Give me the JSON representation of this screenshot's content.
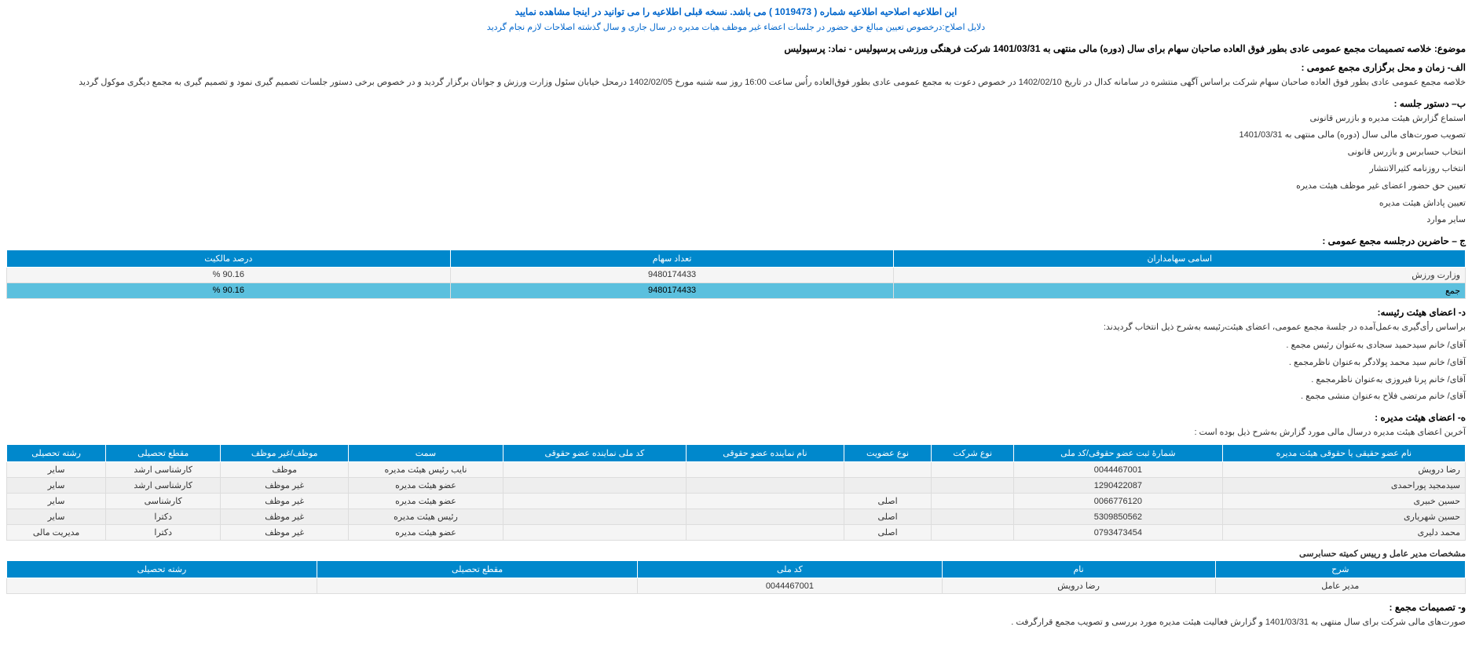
{
  "header": {
    "notice": "این اطلاعیه اصلاحیه اطلاعیه شماره ( 1019473 ) می باشد. نسخه قبلی اطلاعیه را می توانید در اینجا مشاهده نمایید",
    "reason": "دلایل اصلاح:درخصوص تعیین مبالغ حق حضور در جلسات اعضاء غیر موظف هیات مدیره در سال جاری و سال گذشته اصلاحات لازم نجام گردید"
  },
  "subject": {
    "label": "موضوع:",
    "text": "خلاصه تصمیمات مجمع عمومی عادی بطور فوق العاده صاحبان سهام برای سال (دوره) مالی منتهی به 1401/03/31 شرکت فرهنگی ورزشی پرسپولیس - نماد: پرسپولیس"
  },
  "sectionA": {
    "title": "الف- زمان و محل برگزاری مجمع عمومی :",
    "text": "خلاصه مجمع عمومی عادی بطور فوق العاده صاحبان سهام شرکت براساس آگهی منتشره در سامانه کدال در تاریخ 1402/02/10 در خصوص دعوت به مجمع عمومی عادی بطور فوق‌العاده راُس ساعت 16:00 روز سه شنبه مورخ 1402/02/05 درمحل  خیابان سئول وزارت ورزش و جوانان   برگزار گردید و در خصوص برخی دستور جلسات تصمیم گیری نمود و تصمیم گیری به مجمع دیگری موکول گردید"
  },
  "sectionB": {
    "title": "ب– دستور جلسه :",
    "items": [
      "استماع گزارش هیئت‌ مدیره و بازرس قانونی",
      "تصویب صورت‌های مالی سال (دوره) مالی منتهی به 1401/03/31",
      "انتخاب حسابرس و بازرس قانونی",
      "انتخاب روزنامه کثیر‌الانتشار",
      "تعیین حق حضور اعضای غیر موظف هیئت مدیره",
      "تعیین پاداش هیئت مدیره",
      "سایر موارد"
    ]
  },
  "sectionC": {
    "title": "ج – حاضرین درجلسه مجمع عمومی :",
    "columns": [
      "اسامی سهامداران",
      "تعداد سهام",
      "درصد مالکیت"
    ],
    "rows": [
      {
        "name": "وزارت ورزش",
        "shares": "9480174433",
        "pct": "90.16 %",
        "cls": "row-light"
      },
      {
        "name": "جمع",
        "shares": "9480174433",
        "pct": "90.16 %",
        "cls": "row-blue"
      }
    ]
  },
  "sectionD": {
    "title": "د- اعضای هیئت رئیسه:",
    "intro": "براساس رأی‌گیری به‌عمل‌آمده در جلسة مجمع عمومی، اعضای هیئت‌رئیسه به‌شرح ذیل انتخاب گردیدند:",
    "members": [
      "آقای/ خانم  سیدحمید سجادی  به‌عنوان رئیس مجمع .",
      "آقای/ خانم  سید محمد پولادگر  به‌عنوان ناظرمجمع .",
      "آقای/ خانم  پرنا فیروزی  به‌عنوان ناظرمجمع .",
      "آقای/ خانم  مرتضی فلاح  به‌عنوان منشی مجمع ."
    ]
  },
  "sectionE": {
    "title": "ه- اعضای هیئت مدیره :",
    "intro": "آخرین اعضای هیئت مدیره درسال مالی مورد گزارش به‌شرح ذیل بوده است :",
    "columns": [
      "نام عضو حقیقی یا حقوقی هیئت مدیره",
      "شمارۀ ثبت عضو حقوقی/کد ملی",
      "نوع شرکت",
      "نوع عضویت",
      "نام نماینده عضو حقوقی",
      "کد ملی نماینده عضو حقوقی",
      "سمت",
      "موظف/غیر موظف",
      "مقطع تحصیلی",
      "رشته تحصیلی"
    ],
    "rows": [
      {
        "c": [
          "رضا درویش",
          "0044467001",
          "",
          "",
          "",
          "",
          "نایب رئیس هیئت مدیره",
          "موظف",
          "کارشناسی ارشد",
          "سایر"
        ],
        "cls": "row-light"
      },
      {
        "c": [
          "سیدمجید پوراحمدی",
          "1290422087",
          "",
          "",
          "",
          "",
          "عضو هیئت مدیره",
          "غیر موظف",
          "کارشناسی ارشد",
          "سایر"
        ],
        "cls": "row-alt"
      },
      {
        "c": [
          "حسین خبیری",
          "0066776120",
          "",
          "اصلی",
          "",
          "",
          "عضو هیئت مدیره",
          "غیر موظف",
          "کارشناسی",
          "سایر"
        ],
        "cls": "row-light"
      },
      {
        "c": [
          "حسین شهریاری",
          "5309850562",
          "",
          "اصلی",
          "",
          "",
          "رئیس هیئت مدیره",
          "غیر موظف",
          "دکترا",
          "سایر"
        ],
        "cls": "row-alt"
      },
      {
        "c": [
          "محمد دلیری",
          "0793473454",
          "",
          "اصلی",
          "",
          "",
          "عضو هیئت مدیره",
          "غیر موظف",
          "دکترا",
          "مدیریت مالی"
        ],
        "cls": "row-light"
      }
    ]
  },
  "sectionF": {
    "title": "مشخصات مدیر عامل و رییس کمیته حسابرسی",
    "columns": [
      "شرح",
      "نام",
      "کد ملی",
      "مقطع تحصیلی",
      "رشته تحصیلی"
    ],
    "rows": [
      {
        "c": [
          "مدیر عامل",
          "رضا درویش",
          "0044467001",
          "",
          ""
        ],
        "cls": "row-light"
      }
    ]
  },
  "sectionG": {
    "title": "و- تصمیمات مجمع :",
    "text": "صورت‌های مالی شرکت برای سال منتهی به  1401/03/31 و گزارش فعالیت هیئت مدیره مورد بررسی و تصویب مجمع قرارگرفت ."
  }
}
